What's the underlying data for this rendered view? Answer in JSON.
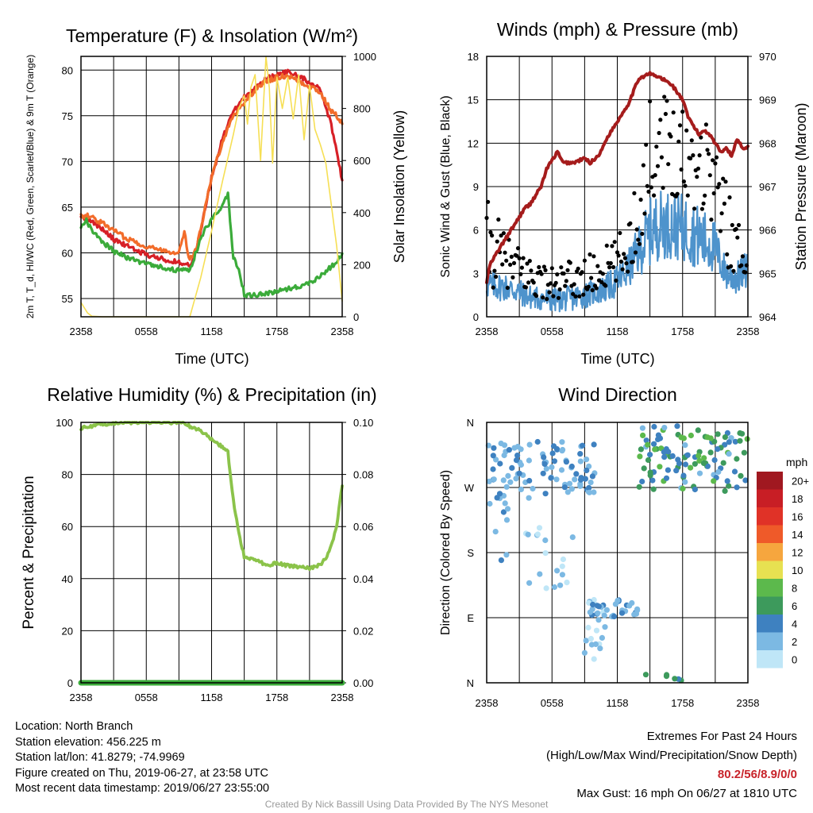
{
  "colors": {
    "red": "#d72027",
    "orange": "#f26c2a",
    "green": "#3bab3a",
    "yellow": "#f6df55",
    "blue": "#4e93cc",
    "black": "#000000",
    "maroon": "#a51c1c",
    "rh_green": "#8bc34a"
  },
  "chart_data": [
    {
      "type": "line",
      "title": "Temperature (F) & Insolation (W/m²)",
      "xlabel": "Time (UTC)",
      "ylabel": "2m T, T_d, HI/WC (Red, Green, Scarlet/Blue) & 9m T (Orange)",
      "ylabel_right": "Solar Insolation (Yellow)",
      "x_ticks": [
        "2358",
        "0558",
        "1158",
        "1758",
        "2358"
      ],
      "y_ticks": [
        55,
        60,
        65,
        70,
        75,
        80
      ],
      "y2_ticks": [
        0,
        200,
        400,
        600,
        800,
        1000
      ],
      "ylim": [
        53,
        81.5
      ],
      "y2lim": [
        0,
        1000
      ],
      "x_hours": [
        0,
        24
      ],
      "series": [
        {
          "key": "temp_2m",
          "color": "red",
          "axis": "left",
          "x": [
            0,
            0.5,
            1,
            2,
            3,
            4,
            5,
            6,
            7,
            8,
            9,
            9.7,
            10,
            10.5,
            11,
            11.5,
            12,
            13,
            14,
            15,
            15.5,
            16,
            17,
            18,
            19,
            20,
            21,
            21.5,
            22,
            22.5,
            23,
            23.5,
            24
          ],
          "y": [
            64,
            63.8,
            63.5,
            62.5,
            61.5,
            60.9,
            60.3,
            59.8,
            59.5,
            59.2,
            58.9,
            59,
            58.5,
            59.8,
            62.5,
            65.5,
            68.2,
            72.5,
            75.5,
            77,
            77.5,
            78.2,
            79,
            79.5,
            79.8,
            79.3,
            78.7,
            78.4,
            77.8,
            76,
            74,
            71,
            68
          ]
        },
        {
          "key": "temp_9m",
          "color": "orange",
          "axis": "left",
          "x": [
            0,
            0.5,
            1,
            2,
            3,
            4,
            5,
            6,
            7,
            8,
            9,
            9.5,
            9.8,
            10,
            10.5,
            11,
            11.5,
            12,
            13,
            14,
            15,
            16,
            17,
            18,
            19,
            20,
            21,
            21.5,
            22,
            22.5,
            23,
            23.5,
            24
          ],
          "y": [
            64,
            64.1,
            63.9,
            63.2,
            62.5,
            61.7,
            61.2,
            60.7,
            60.4,
            60.2,
            60,
            62.5,
            60,
            59.2,
            60.2,
            62.5,
            65.5,
            68.2,
            72.2,
            75,
            76.5,
            77.8,
            78.8,
            79.2,
            79.4,
            78.8,
            78.2,
            78,
            77.5,
            76.5,
            75.5,
            75,
            74.2
          ]
        },
        {
          "key": "dewpoint",
          "color": "green",
          "axis": "left",
          "x": [
            0,
            0.5,
            1,
            2,
            3,
            4,
            5,
            6,
            7,
            8,
            9,
            10,
            10.5,
            11,
            11.5,
            12,
            12.5,
            13,
            13.5,
            14,
            14.5,
            15,
            15.5,
            16,
            17,
            18,
            19,
            20,
            21,
            22,
            23,
            23.5,
            24
          ],
          "y": [
            62.8,
            63.5,
            62.5,
            61.2,
            60.2,
            59.6,
            59.1,
            58.9,
            58.6,
            58.3,
            58.1,
            58.2,
            59.8,
            61.5,
            62.8,
            63.6,
            64.5,
            65.2,
            66.4,
            59.5,
            58,
            55.5,
            55.3,
            55.4,
            55.5,
            55.8,
            56.1,
            56.3,
            56.7,
            57.5,
            58.5,
            59,
            60
          ]
        },
        {
          "key": "insolation",
          "color": "yellow",
          "axis": "right",
          "x": [
            0,
            0.3,
            0.6,
            1,
            2,
            4,
            6,
            8,
            9,
            10,
            11,
            12,
            13,
            14,
            14.5,
            15,
            15.3,
            15.6,
            16,
            16.5,
            17,
            17.3,
            17.6,
            18,
            18.5,
            19,
            19.5,
            20,
            20.5,
            21,
            21.5,
            22,
            22.5,
            23,
            23.5,
            24
          ],
          "y": [
            55,
            35,
            15,
            2,
            0,
            0,
            0,
            0,
            0,
            0,
            150,
            330,
            520,
            700,
            800,
            850,
            740,
            880,
            930,
            600,
            1000,
            880,
            590,
            920,
            800,
            920,
            760,
            930,
            680,
            890,
            720,
            660,
            590,
            430,
            270,
            60
          ]
        }
      ]
    },
    {
      "type": "scatter",
      "title": "Winds (mph) & Pressure (mb)",
      "xlabel": "Time (UTC)",
      "ylabel": "Sonic Wind & Gust (Blue, Black)",
      "ylabel_right": "Station Pressure (Maroon)",
      "x_ticks": [
        "2358",
        "0558",
        "1158",
        "1758",
        "2358"
      ],
      "y_ticks": [
        0,
        3,
        6,
        9,
        12,
        15,
        18
      ],
      "y2_ticks": [
        964,
        965,
        966,
        967,
        968,
        969,
        970
      ],
      "ylim": [
        0,
        18
      ],
      "y2lim": [
        964,
        970
      ],
      "x_hours": [
        0,
        24
      ],
      "wind_envelope": {
        "x": [
          0,
          2,
          4,
          6,
          8,
          10,
          11,
          12,
          13,
          14,
          15,
          16,
          17,
          18,
          19,
          20,
          21,
          21.5,
          22,
          23,
          24
        ],
        "lo": [
          1.2,
          1.0,
          0.5,
          0.3,
          0.4,
          0.8,
          1.0,
          1.3,
          2.0,
          2.8,
          3.5,
          4.0,
          4.0,
          3.8,
          3.5,
          3.0,
          3.0,
          2.5,
          1.8,
          1.5,
          2.0
        ],
        "hi": [
          3.2,
          3.0,
          2.2,
          2.0,
          2.2,
          2.6,
          3.0,
          3.6,
          4.6,
          6.4,
          8.2,
          8.8,
          8.7,
          8.5,
          8.0,
          7.4,
          6.6,
          5.0,
          4.2,
          3.8,
          4.8
        ]
      },
      "gust_envelope": {
        "x": [
          0,
          2,
          4,
          6,
          8,
          10,
          11,
          12,
          13,
          14,
          15,
          16,
          17,
          18,
          19,
          20,
          21,
          21.5,
          22,
          23,
          24
        ],
        "lo": [
          2.0,
          2.0,
          1.5,
          1.0,
          1.2,
          1.6,
          2.0,
          2.2,
          3.0,
          4.5,
          8.0,
          9.0,
          8.5,
          8.0,
          7.5,
          7.0,
          6.5,
          5.0,
          3.5,
          3.0,
          3.0
        ],
        "hi": [
          8.2,
          5.5,
          4.5,
          3.5,
          4.0,
          4.5,
          5.0,
          5.5,
          7.0,
          11.0,
          15.0,
          16.0,
          15.5,
          15.5,
          15.0,
          15.0,
          13.0,
          11.5,
          10.0,
          6.5,
          6.0
        ]
      },
      "pressure": {
        "x": [
          0,
          0.3,
          1,
          2,
          3,
          3.5,
          4,
          4.5,
          5,
          5.5,
          6,
          6.5,
          7,
          8,
          9,
          9.5,
          10,
          10.5,
          11,
          11.5,
          12,
          13,
          13.5,
          14,
          15,
          16,
          17,
          18,
          18.5,
          19,
          19.5,
          20,
          20.5,
          21,
          21.5,
          22,
          22.5,
          23,
          23.5,
          24
        ],
        "y": [
          964.8,
          965.2,
          965.5,
          965.9,
          966.3,
          966.5,
          966.6,
          966.8,
          967.0,
          967.4,
          967.6,
          967.8,
          967.55,
          967.55,
          967.65,
          967.55,
          967.65,
          967.8,
          968.1,
          968.3,
          968.5,
          968.9,
          969.2,
          969.5,
          969.6,
          969.5,
          969.35,
          969.0,
          968.6,
          968.4,
          968.2,
          968.3,
          968.2,
          968.0,
          967.8,
          967.9,
          967.7,
          968.1,
          967.9,
          967.9
        ]
      }
    },
    {
      "type": "line",
      "title": "Relative Humidity (%) & Precipitation (in)",
      "ylabel": "Percent & Precipitation",
      "x_ticks": [
        "2358",
        "0558",
        "1158",
        "1758",
        "2358"
      ],
      "y_ticks": [
        0,
        20,
        40,
        60,
        80,
        100
      ],
      "y2_ticks": [
        "0.00",
        "0.02",
        "0.04",
        "0.06",
        "0.08",
        "0.10"
      ],
      "ylim": [
        0,
        100
      ],
      "y2lim": [
        0,
        0.1
      ],
      "x_hours": [
        0,
        24
      ],
      "series": [
        {
          "key": "rh",
          "color": "rh_green",
          "x": [
            0,
            0.5,
            1,
            2,
            3,
            4,
            5,
            6,
            7,
            8,
            9,
            9.5,
            10,
            11,
            12,
            13,
            13.5,
            14,
            14.5,
            15,
            16,
            16.5,
            17,
            18,
            19,
            20,
            21,
            21.5,
            22,
            22.5,
            23,
            23.5,
            24
          ],
          "y": [
            97.5,
            98.5,
            98.5,
            99.2,
            99.8,
            100,
            100,
            100,
            100,
            100,
            99.9,
            99.8,
            98.5,
            96.8,
            93.5,
            90.5,
            88.5,
            70,
            57.5,
            48.5,
            47,
            46.5,
            45,
            46,
            45,
            44.5,
            44,
            44.5,
            45.5,
            48,
            52.5,
            60,
            76
          ]
        },
        {
          "key": "precip",
          "color": "green",
          "x": [
            0,
            24
          ],
          "y": [
            0,
            0
          ]
        }
      ]
    },
    {
      "type": "scatter",
      "title": "Wind Direction",
      "ylabel": "Direction (Colored By Speed)",
      "x_ticks": [
        "2358",
        "0558",
        "1158",
        "1758",
        "2358"
      ],
      "y_tick_labels": [
        "N",
        "E",
        "S",
        "W",
        "N"
      ],
      "ylim": [
        0,
        360
      ],
      "x_hours": [
        0,
        24
      ],
      "colorbar": {
        "title": "mph",
        "labels": [
          "0",
          "2",
          "4",
          "6",
          "8",
          "10",
          "12",
          "14",
          "16",
          "18",
          "20+"
        ],
        "colors": [
          "#bfe6f7",
          "#7cb9e3",
          "#3e81c0",
          "#3d9a5c",
          "#5cb94c",
          "#e7e151",
          "#f6a63e",
          "#ef5a29",
          "#e03227",
          "#c81e25",
          "#a01820"
        ]
      }
    }
  ],
  "info": {
    "location": "Location: North Branch",
    "elevation": "Station elevation: 456.225 m",
    "latlon": "Station lat/lon: 41.8279; -74.9969",
    "created": "Figure created on Thu, 2019-06-27, at 23:58 UTC",
    "recent": "Most recent data timestamp: 2019/06/27 23:55:00"
  },
  "extremes": {
    "title": "Extremes For Past 24 Hours",
    "subtitle": "(High/Low/Max Wind/Precipitation/Snow Depth)",
    "values": "80.2/56/8.9/0/0",
    "max_gust": "Max Gust: 16 mph On 06/27 at 1810 UTC"
  },
  "credit": "Created By Nick Bassill Using Data Provided By The NYS Mesonet"
}
